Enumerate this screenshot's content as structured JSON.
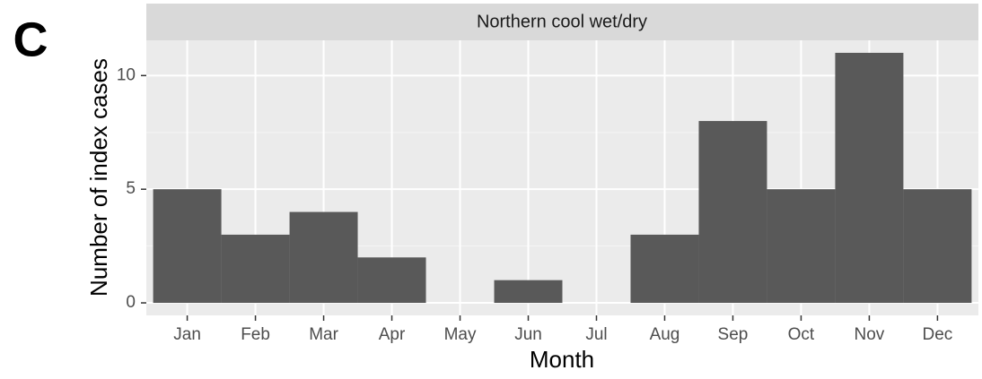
{
  "chart_data": {
    "type": "bar",
    "panel_label": "C",
    "strip_title": "Northern cool wet/dry",
    "x_label": "Month",
    "y_label": "Number of index cases",
    "categories": [
      "Jan",
      "Feb",
      "Mar",
      "Apr",
      "May",
      "Jun",
      "Jul",
      "Aug",
      "Sep",
      "Oct",
      "Nov",
      "Dec"
    ],
    "values": [
      5,
      3,
      4,
      2,
      0,
      1,
      0,
      3,
      8,
      5,
      11,
      5
    ],
    "color": "#595959",
    "ylim": [
      -0.55,
      11.55
    ],
    "yticks": [
      0,
      5,
      10
    ],
    "grid": true
  }
}
